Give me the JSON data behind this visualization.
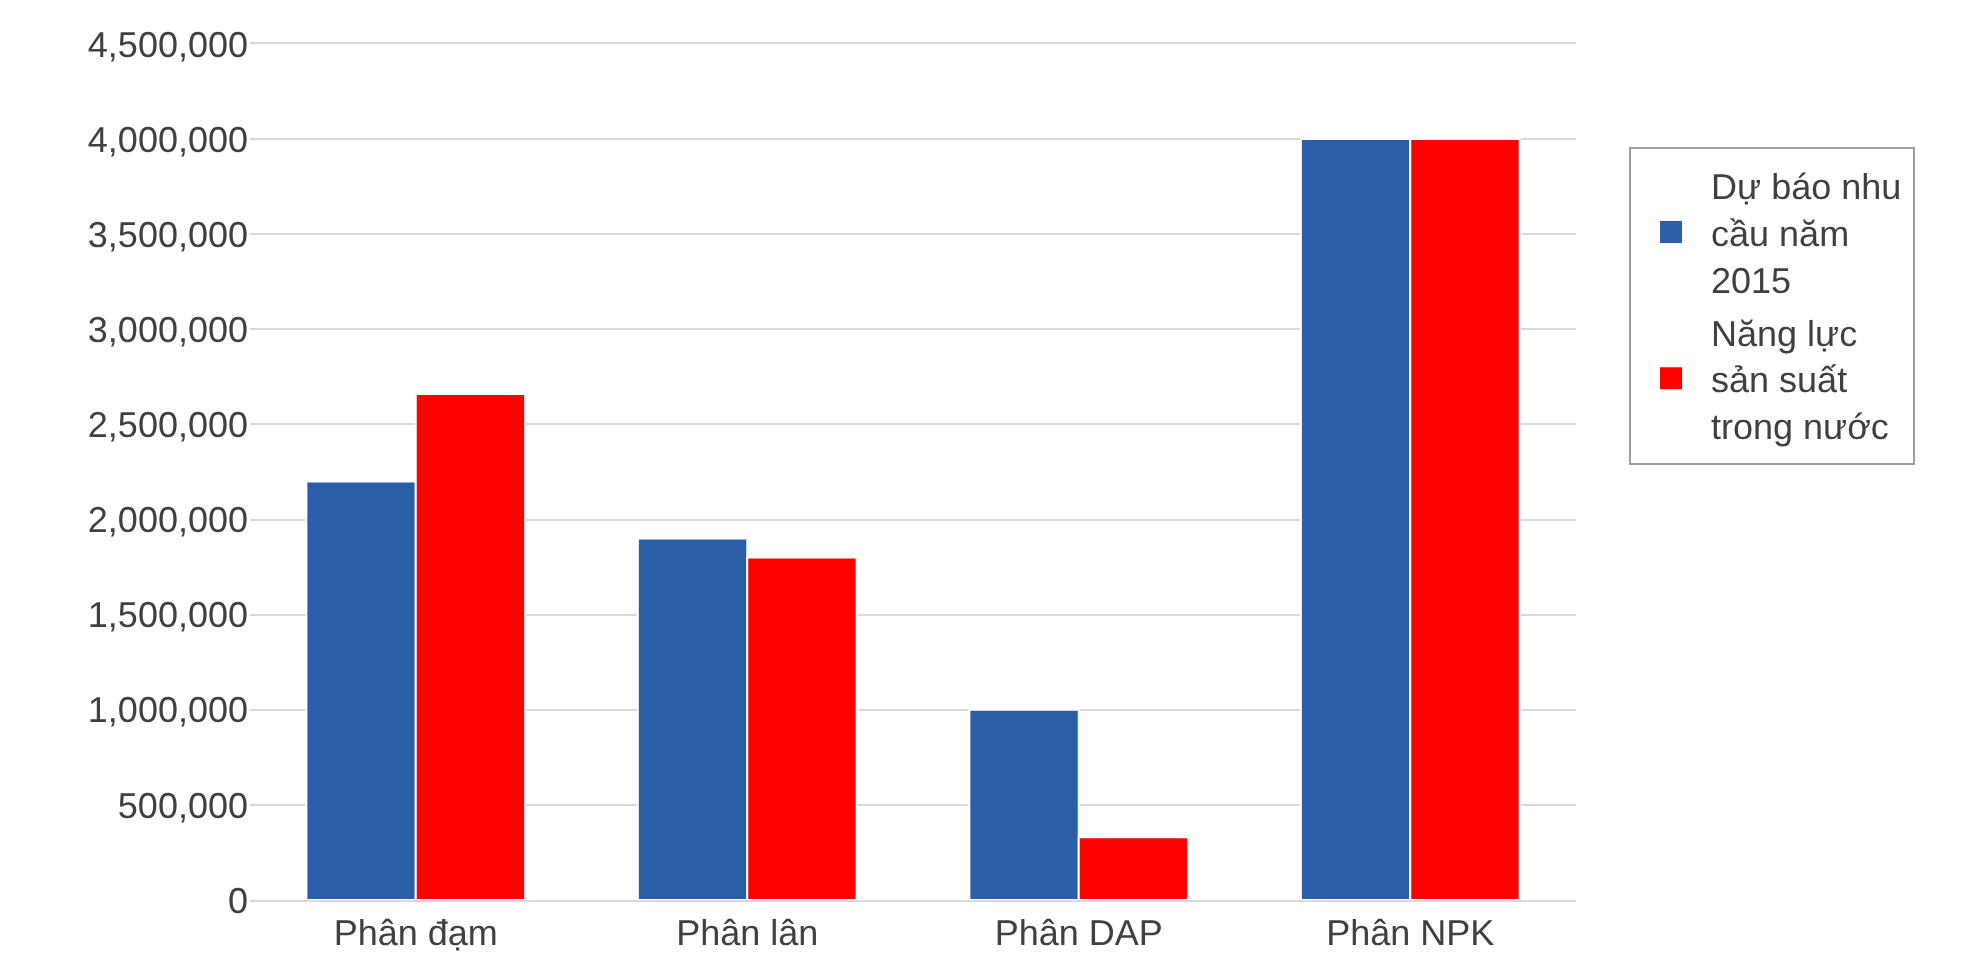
{
  "chart_data": {
    "type": "bar",
    "categories": [
      "Phân đạm",
      "Phân lân",
      "Phân DAP",
      "Phân NPK"
    ],
    "series": [
      {
        "name": "Dự báo nhu cầu năm 2015",
        "color": "#2a5ea6",
        "values": [
          2200000,
          1900000,
          1000000,
          4000000
        ]
      },
      {
        "name": "Năng lực sản suất trong nước",
        "color": "#ff0000",
        "values": [
          2660000,
          1800000,
          330000,
          4000000
        ]
      }
    ],
    "ylim": [
      0,
      4500000
    ],
    "yticks": [
      {
        "value": 0,
        "label": "0"
      },
      {
        "value": 500000,
        "label": "500,000"
      },
      {
        "value": 1000000,
        "label": "1,000,000"
      },
      {
        "value": 1500000,
        "label": "1,500,000"
      },
      {
        "value": 2000000,
        "label": "2,000,000"
      },
      {
        "value": 2500000,
        "label": "2,500,000"
      },
      {
        "value": 3000000,
        "label": "3,000,000"
      },
      {
        "value": 3500000,
        "label": "3,500,000"
      },
      {
        "value": 4000000,
        "label": "4,000,000"
      },
      {
        "value": 4500000,
        "label": "4,500,000"
      }
    ],
    "grid": "y",
    "legend": "right"
  }
}
